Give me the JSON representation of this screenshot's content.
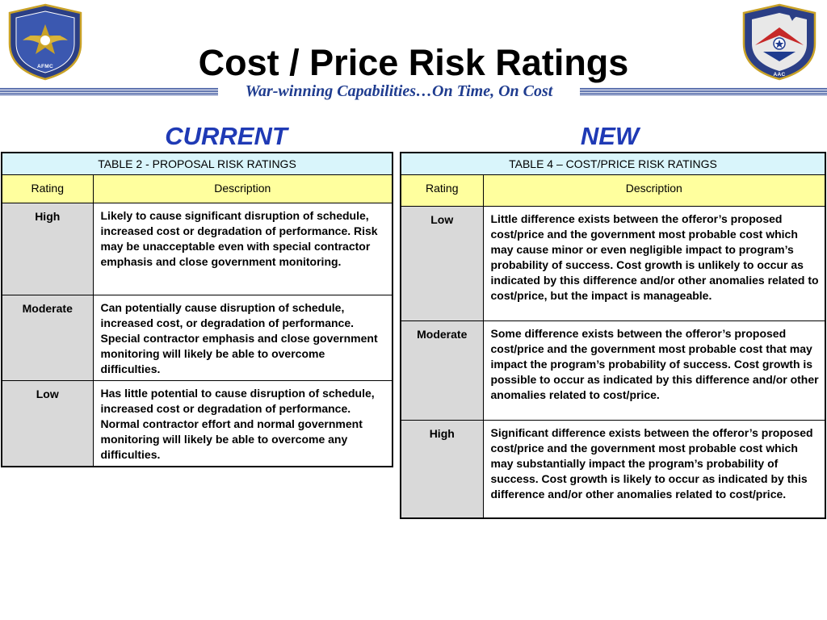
{
  "header": {
    "title": "Cost / Price Risk Ratings",
    "tagline": "War-winning Capabilities…On Time, On Cost",
    "left_seal": {
      "icon": "air-force-materiel-command-seal-icon",
      "text": "AIR FORCE MATERIEL COMMAND"
    },
    "right_seal": {
      "icon": "air-armament-center-seal-icon",
      "text": "AIR ARMAMENT CENTER"
    }
  },
  "colors": {
    "heading_blue": "#1f3ab5",
    "tagline_blue": "#1f3c8f",
    "caption_bg": "#d9f5fb",
    "header_bg": "#ffff9e",
    "rating_bg": "#d9d9d9"
  },
  "current": {
    "heading": "CURRENT",
    "table": {
      "caption": "TABLE 2 - PROPOSAL RISK RATINGS",
      "col_rating": "Rating",
      "col_description": "Description",
      "rows": [
        {
          "rating": "High",
          "description": "Likely to cause significant disruption of schedule, increased cost or degradation of performance. Risk may be unacceptable even with special contractor emphasis and close government monitoring."
        },
        {
          "rating": "Moderate",
          "description": "Can potentially cause disruption of schedule, increased cost, or degradation of performance. Special contractor emphasis and close government monitoring will likely be able to overcome difficulties."
        },
        {
          "rating": "Low",
          "description": "Has little potential to cause disruption of schedule, increased cost or degradation of performance. Normal contractor effort and normal government monitoring will likely be able to overcome any difficulties."
        }
      ]
    }
  },
  "new": {
    "heading": "NEW",
    "table": {
      "caption": "TABLE 4 – COST/PRICE RISK RATINGS",
      "col_rating": "Rating",
      "col_description": "Description",
      "rows": [
        {
          "rating": "Low",
          "description": "Little difference exists between the offeror’s proposed cost/price and the government most probable cost which may cause minor or even negligible impact to program’s probability of success.  Cost growth is unlikely to occur as indicated by this difference and/or other anomalies related to cost/price, but the impact is manageable."
        },
        {
          "rating": "Moderate",
          "description": "Some difference exists between the offeror’s proposed cost/price and the government most probable cost that may impact the program’s probability of success.  Cost growth is possible to occur as indicated by this difference and/or other anomalies related to cost/price."
        },
        {
          "rating": "High",
          "description": "Significant difference exists between the offeror’s proposed cost/price and the government most probable cost which may substantially impact the program’s probability of success.  Cost growth is likely to occur as indicated by this difference and/or other anomalies related to cost/price."
        }
      ]
    }
  }
}
